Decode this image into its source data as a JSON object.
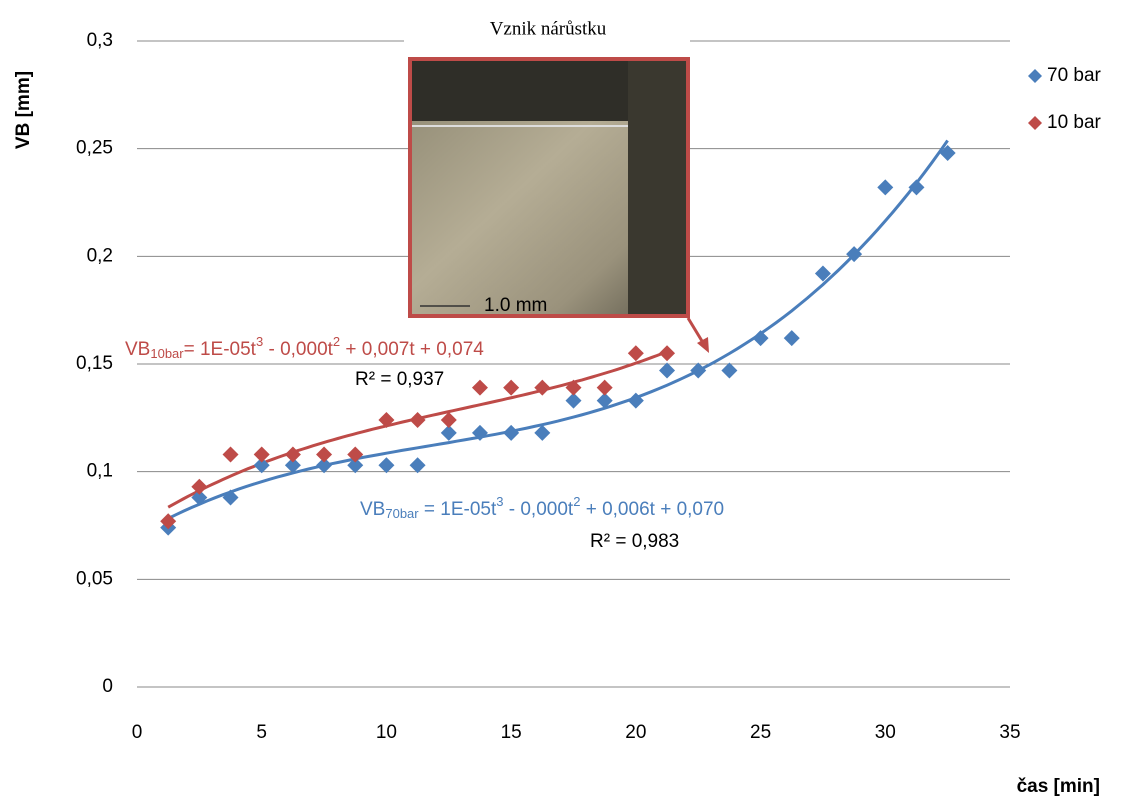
{
  "chart_data": {
    "type": "scatter",
    "series": [
      {
        "name": "70 bar",
        "color": "#4a7ebb",
        "trendline_color": "#4a7ebb",
        "x": [
          1.25,
          2.5,
          3.75,
          5,
          6.25,
          7.5,
          8.75,
          10,
          11.25,
          12.5,
          13.75,
          15,
          16.25,
          17.5,
          18.75,
          20,
          21.25,
          22.5,
          23.75,
          25,
          26.25,
          27.5,
          28.75,
          30,
          31.25,
          32.5
        ],
        "values": [
          0.074,
          0.088,
          0.088,
          0.103,
          0.103,
          0.103,
          0.103,
          0.103,
          0.103,
          0.118,
          0.118,
          0.118,
          0.118,
          0.133,
          0.133,
          0.133,
          0.147,
          0.147,
          0.147,
          0.162,
          0.162,
          0.192,
          0.201,
          0.232,
          0.232,
          0.248
        ]
      },
      {
        "name": "10 bar",
        "color": "#be4b48",
        "trendline_color": "#be4b48",
        "x": [
          1.25,
          2.5,
          3.75,
          5,
          6.25,
          7.5,
          8.75,
          10,
          11.25,
          12.5,
          13.75,
          15,
          16.25,
          17.5,
          18.75,
          20,
          21.25
        ],
        "values": [
          0.077,
          0.093,
          0.108,
          0.108,
          0.108,
          0.108,
          0.108,
          0.124,
          0.124,
          0.124,
          0.139,
          0.139,
          0.139,
          0.139,
          0.139,
          0.155,
          0.155
        ]
      }
    ],
    "trendline_labels": [
      {
        "parts": [
          "VB",
          "10bar",
          "= 1E-05t",
          "3",
          " - 0,000t",
          "2",
          " + 0,007t + 0,074"
        ],
        "r2": "R² = 0,937",
        "color": "#be4b48"
      },
      {
        "parts": [
          "VB",
          "70bar",
          " = 1E-05t",
          "3",
          " - 0,000t",
          "2",
          " + 0,006t + 0,070"
        ],
        "r2": "R² = 0,983",
        "color": "#4a7ebb"
      }
    ],
    "inset": {
      "title": "Vznik nárůstku",
      "scale_label": "1.0 mm",
      "border_color": "#be4b48"
    },
    "x_label": "čas [min]",
    "y_label": "VB [mm]",
    "xlim": [
      0,
      35
    ],
    "xticks": [
      0,
      5,
      10,
      15,
      20,
      25,
      30,
      35
    ],
    "ylim": [
      0,
      0.3
    ],
    "yticks": [
      0,
      {
        "value": 0.05,
        "label": "0,05"
      },
      {
        "value": 0.1,
        "label": "0,1"
      },
      {
        "value": 0.15,
        "label": "0,15"
      },
      {
        "value": 0.2,
        "label": "0,2"
      },
      {
        "value": 0.25,
        "label": "0,25"
      },
      {
        "value": 0.3,
        "label": "0,3"
      }
    ],
    "grid": true,
    "legend": "right"
  }
}
